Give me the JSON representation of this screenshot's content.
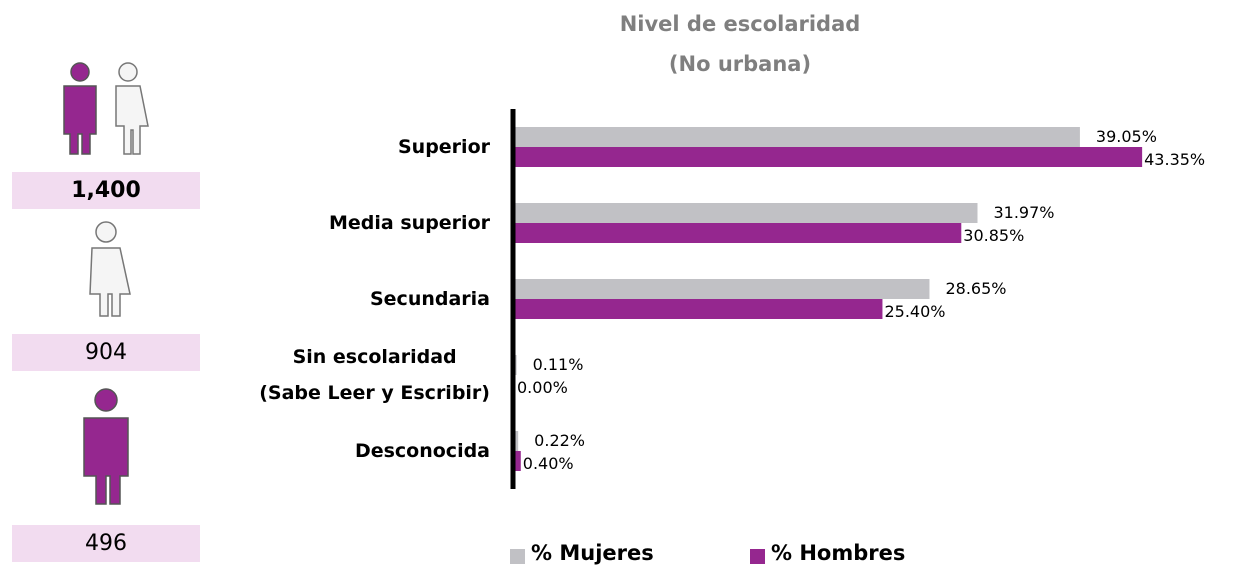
{
  "chart_data": {
    "type": "hbar",
    "title": "Nivel de escolaridad\n(No urbana)",
    "categories": [
      "Superior",
      "Media superior",
      "Secundaria",
      "Sin escolaridad\n(Sabe Leer y Escribir)",
      "Desconocida"
    ],
    "series": [
      {
        "name": "% Mujeres",
        "color": "#c1c1c5",
        "values": [
          39.05,
          31.97,
          28.65,
          0.11,
          0.22
        ],
        "value_labels": [
          "39.05%",
          "31.97%",
          "28.65%",
          "0.11%",
          "0.22%"
        ]
      },
      {
        "name": "% Hombres",
        "color": "#95278f",
        "values": [
          43.35,
          30.85,
          25.4,
          0.0,
          0.4
        ],
        "value_labels": [
          "43.35%",
          "30.85%",
          "25.40%",
          "0.00%",
          "0.40%"
        ]
      }
    ],
    "xlim": [
      0,
      45
    ]
  },
  "summary": {
    "total": "1,400",
    "women": "904",
    "men": "496"
  }
}
